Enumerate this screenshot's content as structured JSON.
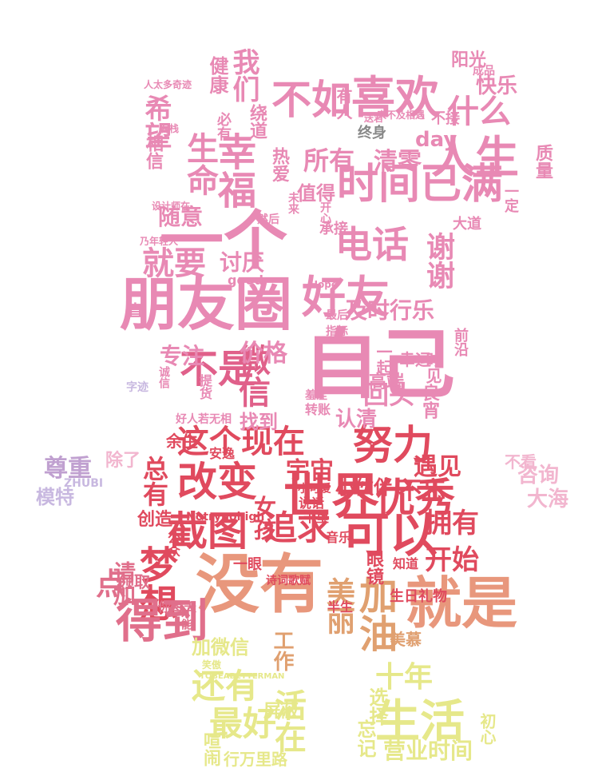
{
  "palette": {
    "pink": "#e889b4",
    "light_pink": "#f2b6cf",
    "rose": "#e06f8b",
    "red": "#e04a5e",
    "salmon": "#e8977c",
    "orange": "#e0a070",
    "yellow": "#e6e88a",
    "lavender": "#c8b8e0",
    "grey": "#888888"
  },
  "words": [
    {
      "text": "一个",
      "color": "#e889b4"
    },
    {
      "text": "朋友圈",
      "color": "#e889b4"
    },
    {
      "text": "好友",
      "color": "#e889b4"
    },
    {
      "text": "自己",
      "color": "#e889b4"
    },
    {
      "text": "时间已满",
      "color": "#e889b4"
    },
    {
      "text": "喜欢",
      "color": "#e889b4"
    },
    {
      "text": "人生",
      "color": "#e889b4"
    },
    {
      "text": "什么",
      "color": "#e889b4"
    },
    {
      "text": "不如",
      "color": "#e889b4"
    },
    {
      "text": "幸福",
      "color": "#e889b4"
    },
    {
      "text": "生命",
      "color": "#e889b4"
    },
    {
      "text": "我们",
      "color": "#e889b4"
    },
    {
      "text": "就要",
      "color": "#e889b4"
    },
    {
      "text": "不是",
      "color": "#e0608a"
    },
    {
      "text": "微信",
      "color": "#e0608a"
    },
    {
      "text": "价格",
      "color": "#e889b4"
    },
    {
      "text": "专注",
      "color": "#e889b4"
    },
    {
      "text": "电话",
      "color": "#e889b4"
    },
    {
      "text": "谢谢",
      "color": "#e889b4"
    },
    {
      "text": "所有",
      "color": "#e889b4"
    },
    {
      "text": "清零",
      "color": "#e889b4"
    },
    {
      "text": "随意",
      "color": "#e889b4"
    },
    {
      "text": "讨厌",
      "color": "#e889b4"
    },
    {
      "text": "及时行乐",
      "color": "#e889b4"
    },
    {
      "text": "这个现在",
      "color": "#e04a5e"
    },
    {
      "text": "努力",
      "color": "#e04a5e"
    },
    {
      "text": "改变",
      "color": "#e04a5e"
    },
    {
      "text": "世界",
      "color": "#e04a5e"
    },
    {
      "text": "优秀",
      "color": "#e04a5e"
    },
    {
      "text": "截图",
      "color": "#e04a5e"
    },
    {
      "text": "追求",
      "color": "#e04a5e"
    },
    {
      "text": "可以",
      "color": "#e04a5e"
    },
    {
      "text": "梦想",
      "color": "#e04a5e"
    },
    {
      "text": "没有",
      "color": "#e8977c"
    },
    {
      "text": "就是",
      "color": "#e8977c"
    },
    {
      "text": "得到",
      "color": "#e06f8b"
    },
    {
      "text": "开始",
      "color": "#e04a5e"
    },
    {
      "text": "拥有",
      "color": "#e04a5e"
    },
    {
      "text": "宇宙",
      "color": "#e04a5e"
    },
    {
      "text": "尊重",
      "color": "#c0a0d0"
    },
    {
      "text": "还有",
      "color": "#e6e88a"
    },
    {
      "text": "最好",
      "color": "#e6e88a"
    },
    {
      "text": "生活",
      "color": "#e6e88a"
    },
    {
      "text": "十年",
      "color": "#e6e88a"
    },
    {
      "text": "加微信",
      "color": "#e6e88a"
    },
    {
      "text": "营业时间",
      "color": "#e6e88a"
    },
    {
      "text": "加油",
      "color": "#e0a070"
    },
    {
      "text": "美丽",
      "color": "#e0a070"
    },
    {
      "text": "回头",
      "color": "#e889b4"
    },
    {
      "text": "认清",
      "color": "#e889b4"
    },
    {
      "text": "找到",
      "color": "#e889b4"
    },
    {
      "text": "遇见",
      "color": "#e04a5e"
    },
    {
      "text": "不忘",
      "color": "#e04a5e"
    },
    {
      "text": "小伙伴",
      "color": "#e04a5e"
    },
    {
      "text": "女孩",
      "color": "#e04a5e"
    },
    {
      "text": "总有",
      "color": "#e04a5e"
    },
    {
      "text": "创造",
      "color": "#e04a5e"
    },
    {
      "text": "请加",
      "color": "#e06f8b"
    },
    {
      "text": "点",
      "color": "#e06f8b"
    },
    {
      "text": "咨询",
      "color": "#f2b6cf"
    },
    {
      "text": "大海",
      "color": "#f2b6cf"
    },
    {
      "text": "模特",
      "color": "#c8b8e0"
    },
    {
      "text": "除了",
      "color": "#f2b6cf"
    },
    {
      "text": "快乐",
      "color": "#e889b4"
    },
    {
      "text": "阳光",
      "color": "#e889b4"
    },
    {
      "text": "希望",
      "color": "#e889b4"
    },
    {
      "text": "健康",
      "color": "#e889b4"
    },
    {
      "text": "终身",
      "color": "#888888"
    },
    {
      "text": "day",
      "color": "#e889b4"
    },
    {
      "text": "值得",
      "color": "#e889b4"
    },
    {
      "text": "热爱",
      "color": "#e889b4"
    },
    {
      "text": "高端",
      "color": "#e889b4"
    },
    {
      "text": "幸运",
      "color": "#e889b4"
    },
    {
      "text": "时见",
      "color": "#e889b4"
    },
    {
      "text": "一起",
      "color": "#e889b4"
    },
    {
      "text": "承接",
      "color": "#e889b4"
    },
    {
      "text": "屏蔽",
      "color": "#e6e88a"
    },
    {
      "text": "活在",
      "color": "#e6e88a"
    },
    {
      "text": "喧闹",
      "color": "#e6e88a"
    },
    {
      "text": "忘记",
      "color": "#e6e88a"
    },
    {
      "text": "选择",
      "color": "#e6e88a"
    },
    {
      "text": "初心",
      "color": "#e6e88a"
    },
    {
      "text": "行万里路",
      "color": "#e6e88a"
    },
    {
      "text": "工作",
      "color": "#e0a070"
    },
    {
      "text": "眼镜",
      "color": "#e04a5e"
    },
    {
      "text": "生日礼物",
      "color": "#e04a5e"
    },
    {
      "text": "良宵",
      "color": "#e889b4"
    },
    {
      "text": "good",
      "color": "#e889b4"
    },
    {
      "text": "一直",
      "color": "#e889b4"
    },
    {
      "text": "质量",
      "color": "#e889b4"
    },
    {
      "text": "相信",
      "color": "#e889b4"
    },
    {
      "text": "一定",
      "color": "#e889b4"
    },
    {
      "text": "不接",
      "color": "#e889b4"
    },
    {
      "text": "有人",
      "color": "#e889b4"
    },
    {
      "text": "绕道",
      "color": "#e889b4"
    },
    {
      "text": "必有",
      "color": "#e889b4"
    },
    {
      "text": "前沿",
      "color": "#e889b4"
    },
    {
      "text": "大道",
      "color": "#e889b4"
    },
    {
      "text": "余生",
      "color": "#e04a5e"
    },
    {
      "text": "半生",
      "color": "#e04a5e"
    },
    {
      "text": "公众",
      "color": "#e04a5e"
    },
    {
      "text": "一眼",
      "color": "#e04a5e"
    },
    {
      "text": "领取",
      "color": "#e06f8b"
    },
    {
      "text": "你每天",
      "color": "#e06f8b"
    },
    {
      "text": "才能",
      "color": "#e06f8b"
    },
    {
      "text": "美慕",
      "color": "#e0a070"
    },
    {
      "text": "诗词歌赋",
      "color": "#e04a5e"
    },
    {
      "text": "不看",
      "color": "#f2b6cf"
    },
    {
      "text": "转账",
      "color": "#e889b4"
    },
    {
      "text": "诚信",
      "color": "#e889b4"
    },
    {
      "text": "开心",
      "color": "#e889b4"
    },
    {
      "text": "提货",
      "color": "#e889b4"
    },
    {
      "text": "Notrynohigh",
      "color": "#e04a5e"
    },
    {
      "text": "TOBEABETTERMAN",
      "color": "#e6e88a"
    },
    {
      "text": "Hope",
      "color": "#e889b4"
    },
    {
      "text": "好人若无相",
      "color": "#e889b4"
    },
    {
      "text": "人太多奇迹",
      "color": "#e889b4"
    },
    {
      "text": "乃年轻人",
      "color": "#e889b4"
    },
    {
      "text": "设计师在",
      "color": "#e889b4"
    },
    {
      "text": "然后",
      "color": "#e889b4"
    },
    {
      "text": "未来",
      "color": "#e889b4"
    },
    {
      "text": "最后",
      "color": "#e889b4"
    },
    {
      "text": "指标",
      "color": "#e889b4"
    },
    {
      "text": "知道",
      "color": "#e04a5e"
    },
    {
      "text": "音乐",
      "color": "#e04a5e"
    },
    {
      "text": "千里",
      "color": "#e04a5e"
    },
    {
      "text": "小可爱",
      "color": "#e04a5e"
    },
    {
      "text": "说话",
      "color": "#e04a5e"
    },
    {
      "text": "笑傲",
      "color": "#e6e88a"
    },
    {
      "text": "安逸",
      "color": "#e04a5e"
    },
    {
      "text": "羞涩",
      "color": "#e889b4"
    },
    {
      "text": "成品",
      "color": "#e889b4"
    },
    {
      "text": "客栈",
      "color": "#e889b4"
    },
    {
      "text": "送君",
      "color": "#e889b4"
    },
    {
      "text": "来不及相遇",
      "color": "#e889b4"
    },
    {
      "text": "字迹",
      "color": "#c8b8e0"
    },
    {
      "text": "ZHUBI",
      "color": "#c8b8e0"
    }
  ]
}
